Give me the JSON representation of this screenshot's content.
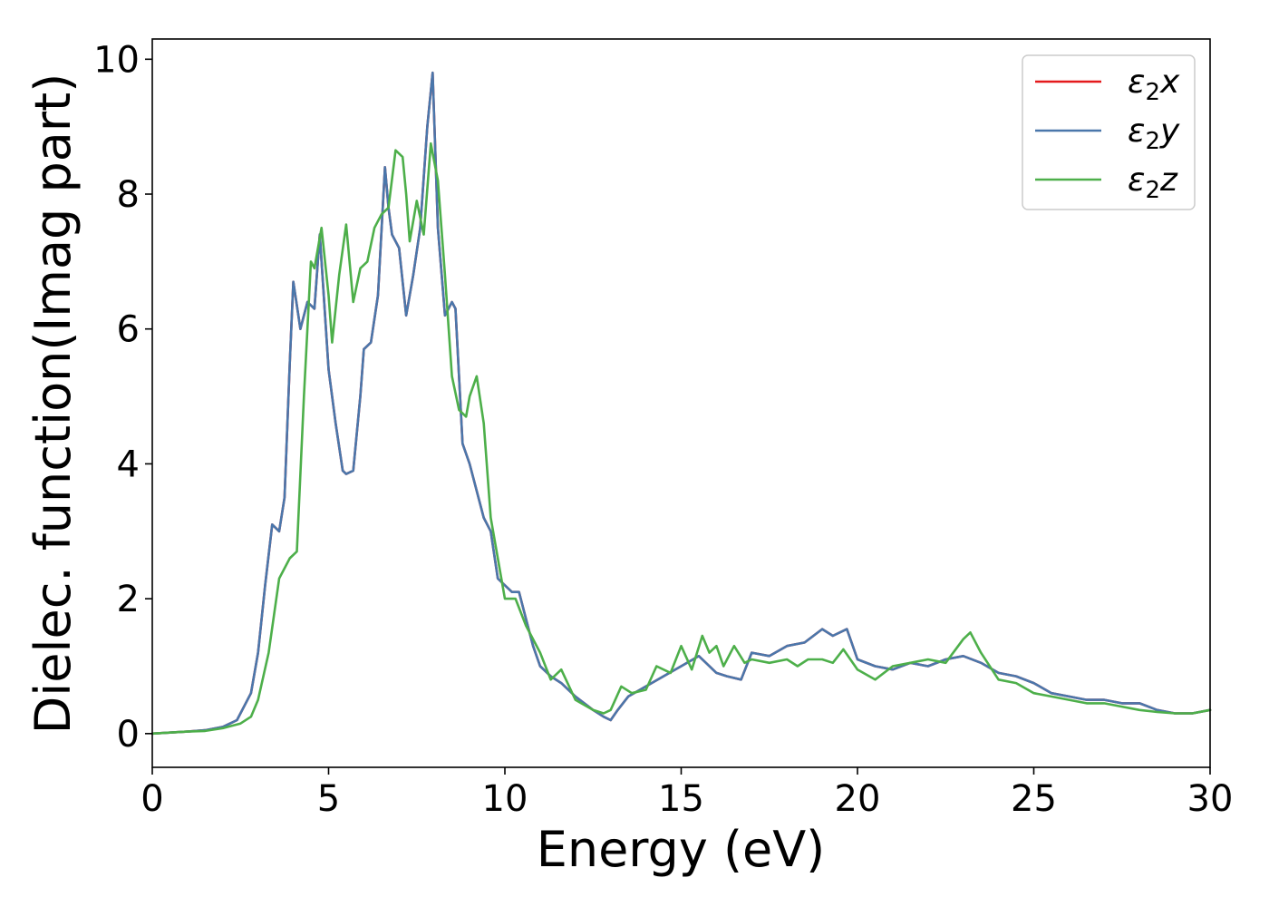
{
  "chart_data": {
    "type": "line",
    "title": "",
    "xlabel": "Energy (eV)",
    "ylabel": "Dielec. function(Imag part)",
    "xlim": [
      0,
      30
    ],
    "ylim": [
      -0.5,
      10.3
    ],
    "xticks": [
      "0",
      "5",
      "10",
      "15",
      "20",
      "25",
      "30"
    ],
    "yticks": [
      "0",
      "2",
      "4",
      "6",
      "8",
      "10"
    ],
    "grid": false,
    "legend_position": "top-right",
    "series": [
      {
        "name": "ε2x",
        "label_base": "ε",
        "label_sub": "2",
        "label_var": "x",
        "color": "#e41a1c",
        "x": [
          0,
          1,
          1.5,
          2,
          2.4,
          2.8,
          3.0,
          3.2,
          3.4,
          3.6,
          3.75,
          3.9,
          4.0,
          4.2,
          4.4,
          4.6,
          4.75,
          5.0,
          5.2,
          5.4,
          5.5,
          5.7,
          5.9,
          6.0,
          6.2,
          6.4,
          6.6,
          6.7,
          6.8,
          7.0,
          7.2,
          7.4,
          7.6,
          7.8,
          7.95,
          8.1,
          8.3,
          8.5,
          8.6,
          8.8,
          9.0,
          9.2,
          9.4,
          9.6,
          9.8,
          10.0,
          10.2,
          10.4,
          10.6,
          10.8,
          11.0,
          11.3,
          11.6,
          12.0,
          12.5,
          12.8,
          13.0,
          13.2,
          13.5,
          14.0,
          14.5,
          15.0,
          15.5,
          16.0,
          16.3,
          16.7,
          17.0,
          17.5,
          18.0,
          18.5,
          19.0,
          19.3,
          19.7,
          20.0,
          20.5,
          21.0,
          21.5,
          22.0,
          22.5,
          23.0,
          23.5,
          24.0,
          24.5,
          25.0,
          25.5,
          26.0,
          26.5,
          27.0,
          27.5,
          28.0,
          28.5,
          29.0,
          29.5,
          30.0
        ],
        "y": [
          0,
          0.03,
          0.05,
          0.1,
          0.2,
          0.6,
          1.2,
          2.2,
          3.1,
          3.0,
          3.5,
          5.5,
          6.7,
          6.0,
          6.4,
          6.3,
          7.4,
          5.4,
          4.6,
          3.9,
          3.85,
          3.9,
          5.0,
          5.7,
          5.8,
          6.5,
          8.4,
          7.8,
          7.4,
          7.2,
          6.2,
          6.8,
          7.5,
          9.0,
          9.8,
          7.5,
          6.2,
          6.4,
          6.3,
          4.3,
          4.0,
          3.6,
          3.2,
          3.0,
          2.3,
          2.2,
          2.1,
          2.1,
          1.7,
          1.3,
          1.0,
          0.85,
          0.75,
          0.55,
          0.35,
          0.25,
          0.2,
          0.35,
          0.55,
          0.7,
          0.85,
          1.0,
          1.15,
          0.9,
          0.85,
          0.8,
          1.2,
          1.15,
          1.3,
          1.35,
          1.55,
          1.45,
          1.55,
          1.1,
          1.0,
          0.95,
          1.05,
          1.0,
          1.1,
          1.15,
          1.05,
          0.9,
          0.85,
          0.75,
          0.6,
          0.55,
          0.5,
          0.5,
          0.45,
          0.45,
          0.35,
          0.3,
          0.3,
          0.35
        ]
      },
      {
        "name": "ε2y",
        "label_base": "ε",
        "label_sub": "2",
        "label_var": "y",
        "color": "#4a77ab",
        "x": [
          0,
          1,
          1.5,
          2,
          2.4,
          2.8,
          3.0,
          3.2,
          3.4,
          3.6,
          3.75,
          3.9,
          4.0,
          4.2,
          4.4,
          4.6,
          4.75,
          5.0,
          5.2,
          5.4,
          5.5,
          5.7,
          5.9,
          6.0,
          6.2,
          6.4,
          6.6,
          6.7,
          6.8,
          7.0,
          7.2,
          7.4,
          7.6,
          7.8,
          7.95,
          8.1,
          8.3,
          8.5,
          8.6,
          8.8,
          9.0,
          9.2,
          9.4,
          9.6,
          9.8,
          10.0,
          10.2,
          10.4,
          10.6,
          10.8,
          11.0,
          11.3,
          11.6,
          12.0,
          12.5,
          12.8,
          13.0,
          13.2,
          13.5,
          14.0,
          14.5,
          15.0,
          15.5,
          16.0,
          16.3,
          16.7,
          17.0,
          17.5,
          18.0,
          18.5,
          19.0,
          19.3,
          19.7,
          20.0,
          20.5,
          21.0,
          21.5,
          22.0,
          22.5,
          23.0,
          23.5,
          24.0,
          24.5,
          25.0,
          25.5,
          26.0,
          26.5,
          27.0,
          27.5,
          28.0,
          28.5,
          29.0,
          29.5,
          30.0
        ],
        "y": [
          0,
          0.03,
          0.05,
          0.1,
          0.2,
          0.6,
          1.2,
          2.2,
          3.1,
          3.0,
          3.5,
          5.5,
          6.7,
          6.0,
          6.4,
          6.3,
          7.4,
          5.4,
          4.6,
          3.9,
          3.85,
          3.9,
          5.0,
          5.7,
          5.8,
          6.5,
          8.4,
          7.8,
          7.4,
          7.2,
          6.2,
          6.8,
          7.5,
          9.0,
          9.8,
          7.5,
          6.2,
          6.4,
          6.3,
          4.3,
          4.0,
          3.6,
          3.2,
          3.0,
          2.3,
          2.2,
          2.1,
          2.1,
          1.7,
          1.3,
          1.0,
          0.85,
          0.75,
          0.55,
          0.35,
          0.25,
          0.2,
          0.35,
          0.55,
          0.7,
          0.85,
          1.0,
          1.15,
          0.9,
          0.85,
          0.8,
          1.2,
          1.15,
          1.3,
          1.35,
          1.55,
          1.45,
          1.55,
          1.1,
          1.0,
          0.95,
          1.05,
          1.0,
          1.1,
          1.15,
          1.05,
          0.9,
          0.85,
          0.75,
          0.6,
          0.55,
          0.5,
          0.5,
          0.45,
          0.45,
          0.35,
          0.3,
          0.3,
          0.35
        ]
      },
      {
        "name": "ε2z",
        "label_base": "ε",
        "label_sub": "2",
        "label_var": "z",
        "color": "#4daf4a",
        "x": [
          0,
          1,
          1.5,
          2,
          2.5,
          2.8,
          3.0,
          3.3,
          3.6,
          3.9,
          4.1,
          4.3,
          4.5,
          4.6,
          4.8,
          5.0,
          5.1,
          5.3,
          5.5,
          5.7,
          5.9,
          6.1,
          6.3,
          6.5,
          6.7,
          6.9,
          7.1,
          7.2,
          7.3,
          7.5,
          7.7,
          7.9,
          8.1,
          8.3,
          8.5,
          8.7,
          8.9,
          9.0,
          9.2,
          9.4,
          9.6,
          9.8,
          10.0,
          10.3,
          10.6,
          11.0,
          11.3,
          11.6,
          12.0,
          12.5,
          12.8,
          13.0,
          13.3,
          13.6,
          14.0,
          14.3,
          14.7,
          15.0,
          15.3,
          15.6,
          15.8,
          16.0,
          16.2,
          16.5,
          16.8,
          17.0,
          17.5,
          18.0,
          18.3,
          18.6,
          19.0,
          19.3,
          19.6,
          20.0,
          20.5,
          21.0,
          21.5,
          22.0,
          22.5,
          23.0,
          23.2,
          23.5,
          24.0,
          24.5,
          25.0,
          25.5,
          26.0,
          26.5,
          27.0,
          27.5,
          28.0,
          28.5,
          29.0,
          29.5,
          30.0
        ],
        "y": [
          0,
          0.03,
          0.04,
          0.08,
          0.15,
          0.25,
          0.5,
          1.2,
          2.3,
          2.6,
          2.7,
          5.0,
          7.0,
          6.9,
          7.5,
          6.5,
          5.8,
          6.8,
          7.55,
          6.4,
          6.9,
          7.0,
          7.5,
          7.7,
          7.8,
          8.65,
          8.55,
          8.0,
          7.3,
          7.9,
          7.4,
          8.75,
          8.2,
          6.8,
          5.3,
          4.8,
          4.7,
          5.0,
          5.3,
          4.6,
          3.2,
          2.6,
          2.0,
          2.0,
          1.6,
          1.2,
          0.8,
          0.95,
          0.5,
          0.35,
          0.3,
          0.35,
          0.7,
          0.6,
          0.65,
          1.0,
          0.9,
          1.3,
          0.95,
          1.45,
          1.2,
          1.3,
          1.0,
          1.3,
          1.05,
          1.1,
          1.05,
          1.1,
          1.0,
          1.1,
          1.1,
          1.05,
          1.25,
          0.95,
          0.8,
          1.0,
          1.05,
          1.1,
          1.05,
          1.4,
          1.5,
          1.2,
          0.8,
          0.75,
          0.6,
          0.55,
          0.5,
          0.45,
          0.45,
          0.4,
          0.35,
          0.32,
          0.3,
          0.3,
          0.35
        ]
      }
    ]
  }
}
